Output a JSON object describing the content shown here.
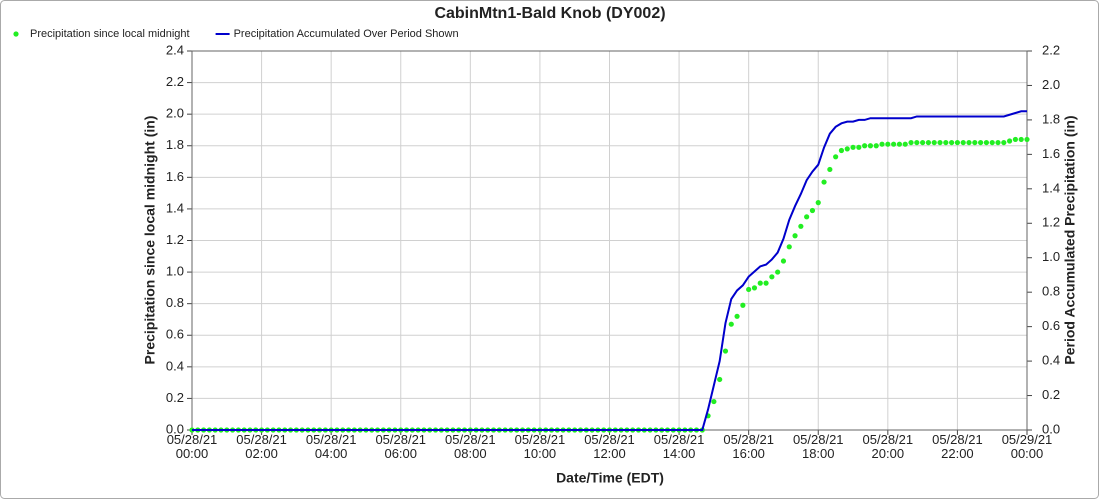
{
  "chart_data": {
    "type": "line",
    "title": "CabinMtn1-Bald Knob (DY002)",
    "x_label": "Date/Time (EDT)",
    "y_label": "Precipitation since local midnight (in)",
    "y2_label": "Period Accumulated Precipitation (in)",
    "xlim": [
      "05/28/21 00:00",
      "05/29/21 00:00"
    ],
    "xticks": [
      "05/28/21 00:00",
      "05/28/21 02:00",
      "05/28/21 04:00",
      "05/28/21 06:00",
      "05/28/21 08:00",
      "05/28/21 10:00",
      "05/28/21 12:00",
      "05/28/21 14:00",
      "05/28/21 16:00",
      "05/28/21 18:00",
      "05/28/21 20:00",
      "05/28/21 22:00",
      "05/29/21 00:00"
    ],
    "ylim": [
      0,
      2.4
    ],
    "yticks": [
      {
        "value": 0,
        "label": "0.0"
      },
      0.2,
      0.4,
      0.6,
      0.8,
      {
        "value": 1,
        "label": "1.0"
      },
      1.2,
      1.4,
      1.6,
      1.8,
      {
        "value": 2,
        "label": "2.0"
      },
      2.2,
      2.4
    ],
    "y2lim": [
      0,
      2.2
    ],
    "y2ticks": [
      {
        "value": 0,
        "label": "0.0"
      },
      0.2,
      0.4,
      0.6,
      0.8,
      {
        "value": 1,
        "label": "1.0"
      },
      1.2,
      1.4,
      1.6,
      1.8,
      {
        "value": 2,
        "label": "2.0"
      },
      2.2
    ],
    "grid": true,
    "legend": "top-left",
    "x": [
      "05/28/21 00:00",
      "05/28/21 00:10",
      "05/28/21 00:20",
      "05/28/21 00:30",
      "05/28/21 00:40",
      "05/28/21 00:50",
      "05/28/21 01:00",
      "05/28/21 01:10",
      "05/28/21 01:20",
      "05/28/21 01:30",
      "05/28/21 01:40",
      "05/28/21 01:50",
      "05/28/21 02:00",
      "05/28/21 02:10",
      "05/28/21 02:20",
      "05/28/21 02:30",
      "05/28/21 02:40",
      "05/28/21 02:50",
      "05/28/21 03:00",
      "05/28/21 03:10",
      "05/28/21 03:20",
      "05/28/21 03:30",
      "05/28/21 03:40",
      "05/28/21 03:50",
      "05/28/21 04:00",
      "05/28/21 04:10",
      "05/28/21 04:20",
      "05/28/21 04:30",
      "05/28/21 04:40",
      "05/28/21 04:50",
      "05/28/21 05:00",
      "05/28/21 05:10",
      "05/28/21 05:20",
      "05/28/21 05:30",
      "05/28/21 05:40",
      "05/28/21 05:50",
      "05/28/21 06:00",
      "05/28/21 06:10",
      "05/28/21 06:20",
      "05/28/21 06:30",
      "05/28/21 06:40",
      "05/28/21 06:50",
      "05/28/21 07:00",
      "05/28/21 07:10",
      "05/28/21 07:20",
      "05/28/21 07:30",
      "05/28/21 07:40",
      "05/28/21 07:50",
      "05/28/21 08:00",
      "05/28/21 08:10",
      "05/28/21 08:20",
      "05/28/21 08:30",
      "05/28/21 08:40",
      "05/28/21 08:50",
      "05/28/21 09:00",
      "05/28/21 09:10",
      "05/28/21 09:20",
      "05/28/21 09:30",
      "05/28/21 09:40",
      "05/28/21 09:50",
      "05/28/21 10:00",
      "05/28/21 10:10",
      "05/28/21 10:20",
      "05/28/21 10:30",
      "05/28/21 10:40",
      "05/28/21 10:50",
      "05/28/21 11:00",
      "05/28/21 11:10",
      "05/28/21 11:20",
      "05/28/21 11:30",
      "05/28/21 11:40",
      "05/28/21 11:50",
      "05/28/21 12:00",
      "05/28/21 12:10",
      "05/28/21 12:20",
      "05/28/21 12:30",
      "05/28/21 12:40",
      "05/28/21 12:50",
      "05/28/21 13:00",
      "05/28/21 13:10",
      "05/28/21 13:20",
      "05/28/21 13:30",
      "05/28/21 13:40",
      "05/28/21 13:50",
      "05/28/21 14:00",
      "05/28/21 14:10",
      "05/28/21 14:20",
      "05/28/21 14:30",
      "05/28/21 14:40",
      "05/28/21 14:50",
      "05/28/21 15:00",
      "05/28/21 15:10",
      "05/28/21 15:20",
      "05/28/21 15:30",
      "05/28/21 15:40",
      "05/28/21 15:50",
      "05/28/21 16:00",
      "05/28/21 16:10",
      "05/28/21 16:20",
      "05/28/21 16:30",
      "05/28/21 16:40",
      "05/28/21 16:50",
      "05/28/21 17:00",
      "05/28/21 17:10",
      "05/28/21 17:20",
      "05/28/21 17:30",
      "05/28/21 17:40",
      "05/28/21 17:50",
      "05/28/21 18:00",
      "05/28/21 18:10",
      "05/28/21 18:20",
      "05/28/21 18:30",
      "05/28/21 18:40",
      "05/28/21 18:50",
      "05/28/21 19:00",
      "05/28/21 19:10",
      "05/28/21 19:20",
      "05/28/21 19:30",
      "05/28/21 19:40",
      "05/28/21 19:50",
      "05/28/21 20:00",
      "05/28/21 20:10",
      "05/28/21 20:20",
      "05/28/21 20:30",
      "05/28/21 20:40",
      "05/28/21 20:50",
      "05/28/21 21:00",
      "05/28/21 21:10",
      "05/28/21 21:20",
      "05/28/21 21:30",
      "05/28/21 21:40",
      "05/28/21 21:50",
      "05/28/21 22:00",
      "05/28/21 22:10",
      "05/28/21 22:20",
      "05/28/21 22:30",
      "05/28/21 22:40",
      "05/28/21 22:50",
      "05/28/21 23:00",
      "05/28/21 23:10",
      "05/28/21 23:20",
      "05/28/21 23:30",
      "05/28/21 23:40",
      "05/28/21 23:50",
      "05/29/21 00:00"
    ],
    "series": [
      {
        "name": "Precipitation since local midnight",
        "color": "#22ee22",
        "marker": "dot",
        "values": [
          0,
          0,
          0,
          0,
          0,
          0,
          0,
          0,
          0,
          0,
          0,
          0,
          0,
          0,
          0,
          0,
          0,
          0,
          0,
          0,
          0,
          0,
          0,
          0,
          0,
          0,
          0,
          0,
          0,
          0,
          0,
          0,
          0,
          0,
          0,
          0,
          0,
          0,
          0,
          0,
          0,
          0,
          0,
          0,
          0,
          0,
          0,
          0,
          0,
          0,
          0,
          0,
          0,
          0,
          0,
          0,
          0,
          0,
          0,
          0,
          0,
          0,
          0,
          0,
          0,
          0,
          0,
          0,
          0,
          0,
          0,
          0,
          0,
          0,
          0,
          0,
          0,
          0,
          0,
          0,
          0,
          0,
          0,
          0,
          0,
          0,
          0,
          0,
          0,
          0.09,
          0.18,
          0.32,
          0.5,
          0.67,
          0.72,
          0.79,
          0.89,
          0.9,
          0.93,
          0.93,
          0.97,
          1.0,
          1.07,
          1.16,
          1.23,
          1.29,
          1.35,
          1.39,
          1.44,
          1.57,
          1.65,
          1.73,
          1.77,
          1.78,
          1.79,
          1.79,
          1.8,
          1.8,
          1.8,
          1.81,
          1.81,
          1.81,
          1.81,
          1.81,
          1.82,
          1.82,
          1.82,
          1.82,
          1.82,
          1.82,
          1.82,
          1.82,
          1.82,
          1.82,
          1.82,
          1.82,
          1.82,
          1.82,
          1.82,
          1.82,
          1.82,
          1.83,
          1.84,
          1.84,
          1.84
        ]
      },
      {
        "name": "Precipitation Accumulated Over Period Shown",
        "color": "#0000cc",
        "marker": "line",
        "axis": "y2",
        "values": [
          0,
          0,
          0,
          0,
          0,
          0,
          0,
          0,
          0,
          0,
          0,
          0,
          0,
          0,
          0,
          0,
          0,
          0,
          0,
          0,
          0,
          0,
          0,
          0,
          0,
          0,
          0,
          0,
          0,
          0,
          0,
          0,
          0,
          0,
          0,
          0,
          0,
          0,
          0,
          0,
          0,
          0,
          0,
          0,
          0,
          0,
          0,
          0,
          0,
          0,
          0,
          0,
          0,
          0,
          0,
          0,
          0,
          0,
          0,
          0,
          0,
          0,
          0,
          0,
          0,
          0,
          0,
          0,
          0,
          0,
          0,
          0,
          0,
          0,
          0,
          0,
          0,
          0,
          0,
          0,
          0,
          0,
          0,
          0,
          0,
          0,
          0,
          0,
          0,
          0.12,
          0.26,
          0.4,
          0.62,
          0.76,
          0.81,
          0.84,
          0.89,
          0.92,
          0.95,
          0.96,
          0.99,
          1.03,
          1.11,
          1.22,
          1.3,
          1.37,
          1.45,
          1.5,
          1.54,
          1.64,
          1.72,
          1.76,
          1.78,
          1.79,
          1.79,
          1.8,
          1.8,
          1.81,
          1.81,
          1.81,
          1.81,
          1.81,
          1.81,
          1.81,
          1.81,
          1.82,
          1.82,
          1.82,
          1.82,
          1.82,
          1.82,
          1.82,
          1.82,
          1.82,
          1.82,
          1.82,
          1.82,
          1.82,
          1.82,
          1.82,
          1.82,
          1.83,
          1.84,
          1.85,
          1.85
        ]
      }
    ]
  }
}
